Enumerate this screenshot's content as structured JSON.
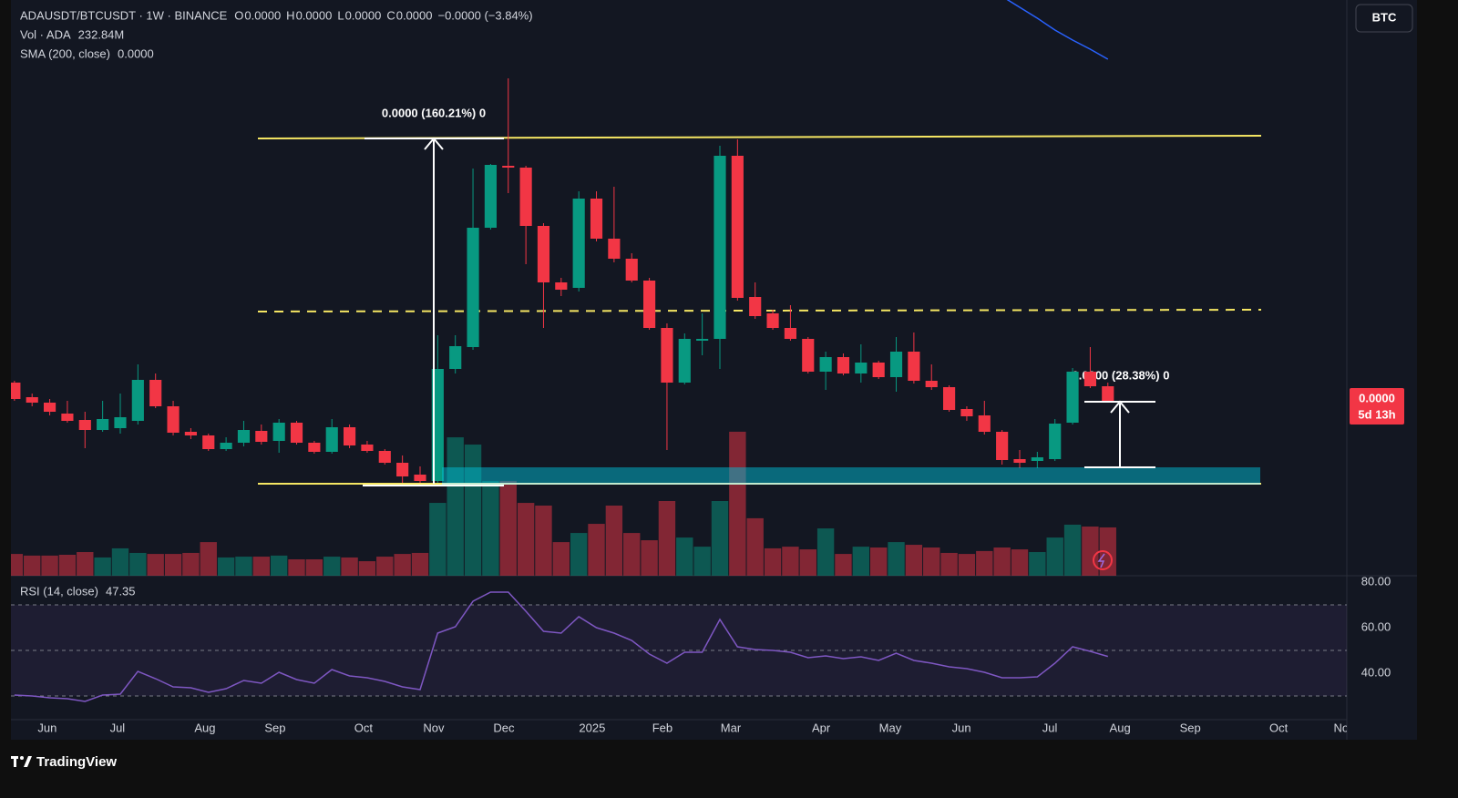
{
  "header": {
    "symbol": "ADAUSDT/BTCUSDT · 1W · BINANCE",
    "ohlc": [
      {
        "label": "O",
        "value": "0.0000"
      },
      {
        "label": "H",
        "value": "0.0000"
      },
      {
        "label": "L",
        "value": "0.0000"
      },
      {
        "label": "C",
        "value": "0.0000"
      }
    ],
    "change": "−0.0000 (−3.84%)",
    "currency_button": "BTC"
  },
  "footer": {
    "brand": "TradingView"
  },
  "chart_data": [
    {
      "type": "candlestick",
      "up_color": "#089981",
      "down_color": "#f23645",
      "open": [
        8.705e-06,
        8.305e-06,
        8.155e-06,
        7.855e-06,
        7.68e-06,
        7.405e-06,
        7.455e-06,
        7.655e-06,
        8.78e-06,
        8.055e-06,
        7.355e-06,
        7.255e-06,
        6.88e-06,
        7.055e-06,
        7.38e-06,
        7.105e-06,
        7.605e-06,
        7.055e-06,
        6.805e-06,
        7.48e-06,
        7.005e-06,
        6.83e-06,
        6.505e-06,
        6.18e-06,
        6.005e-06,
        9.08e-06,
        9.68e-06,
        1.2955e-05,
        1.4655e-05,
        1.4605e-05,
        1.3005e-05,
        1.1455e-05,
        1.1305e-05,
        1.3755e-05,
        1.2655e-05,
        1.2105e-05,
        1.1505e-05,
        1.0205e-05,
        8.705e-06,
        9.855e-06,
        9.905e-06,
        1.493e-05,
        1.1055e-05,
        1.0605e-05,
        1.0205e-05,
        9.905e-06,
        9.005e-06,
        9.405e-06,
        8.955e-06,
        9.255e-06,
        8.855e-06,
        9.555e-06,
        8.755e-06,
        8.58e-06,
        7.98e-06,
        7.805e-06,
        7.355e-06,
        6.605e-06,
        6.555e-06,
        6.605e-06,
        7.605e-06,
        9.005e-06,
        8.605e-06
      ],
      "high": [
        8.755e-06,
        8.405e-06,
        8.255e-06,
        8.205e-06,
        7.905e-06,
        8.205e-06,
        8.405e-06,
        9.205e-06,
        8.955e-06,
        8.205e-06,
        7.455e-06,
        7.305e-06,
        7.205e-06,
        7.655e-06,
        7.555e-06,
        7.705e-06,
        7.655e-06,
        7.105e-06,
        7.705e-06,
        7.555e-06,
        7.105e-06,
        6.88e-06,
        6.705e-06,
        6.405e-06,
        1.0005e-05,
        1.0005e-05,
        1.458e-05,
        1.4705e-05,
        1.7055e-05,
        1.4655e-05,
        1.308e-05,
        1.158e-05,
        1.3955e-05,
        1.3955e-05,
        1.408e-05,
        1.2255e-05,
        1.158e-05,
        1.033e-05,
        1.0055e-05,
        1.0605e-05,
        1.5205e-05,
        1.538e-05,
        1.1455e-05,
        1.0705e-05,
        1.083e-05,
        9.955e-06,
        9.555e-06,
        9.505e-06,
        9.755e-06,
        9.305e-06,
        9.955e-06,
        1.008e-05,
        9.205e-06,
        8.63e-06,
        8.055e-06,
        8.205e-06,
        7.405e-06,
        6.855e-06,
        6.805e-06,
        7.705e-06,
        9.105e-06,
        9.68e-06,
        8.705e-06
      ],
      "low": [
        8.205e-06,
        8.055e-06,
        7.805e-06,
        7.605e-06,
        6.905e-06,
        7.355e-06,
        7.305e-06,
        7.555e-06,
        8.005e-06,
        7.255e-06,
        7.155e-06,
        6.83e-06,
        6.83e-06,
        6.955e-06,
        7.005e-06,
        6.78e-06,
        7.005e-06,
        6.755e-06,
        6.755e-06,
        6.905e-06,
        6.78e-06,
        6.455e-06,
        5.955e-06,
        5.93e-06,
        5.955e-06,
        8.955e-06,
        9.605e-06,
        1.2905e-05,
        1.3905e-05,
        1.1955e-05,
        1.0205e-05,
        1.108e-05,
        1.1205e-05,
        1.258e-05,
        1.2005e-05,
        1.1455e-05,
        1.0155e-05,
        6.855e-06,
        8.655e-06,
        9.455e-06,
        9.08e-06,
        1.0955e-05,
        1.0455e-05,
        1.0155e-05,
        9.855e-06,
        8.955e-06,
        8.505e-06,
        8.905e-06,
        8.705e-06,
        8.805e-06,
        8.455e-06,
        8.68e-06,
        8.505e-06,
        7.905e-06,
        7.655e-06,
        7.28e-06,
        6.455e-06,
        6.355e-06,
        6.355e-06,
        6.555e-06,
        7.555e-06,
        8.555e-06,
        8.155e-06
      ],
      "close": [
        8.255e-06,
        8.155e-06,
        7.905e-06,
        7.655e-06,
        7.405e-06,
        7.705e-06,
        7.755e-06,
        8.78e-06,
        8.055e-06,
        7.33e-06,
        7.255e-06,
        6.88e-06,
        7.055e-06,
        7.405e-06,
        7.08e-06,
        7.605e-06,
        7.055e-06,
        6.805e-06,
        7.48e-06,
        6.98e-06,
        6.83e-06,
        6.505e-06,
        6.13e-06,
        6.005e-06,
        9.08e-06,
        9.705e-06,
        1.2955e-05,
        1.468e-05,
        1.4605e-05,
        1.3005e-05,
        1.1455e-05,
        1.1255e-05,
        1.3755e-05,
        1.2655e-05,
        1.2105e-05,
        1.1505e-05,
        1.0205e-05,
        8.705e-06,
        9.905e-06,
        9.905e-06,
        1.493e-05,
        1.103e-05,
        1.053e-05,
        1.0205e-05,
        9.905e-06,
        9.005e-06,
        9.405e-06,
        8.955e-06,
        9.255e-06,
        8.855e-06,
        9.555e-06,
        8.755e-06,
        8.58e-06,
        7.955e-06,
        7.78e-06,
        7.355e-06,
        6.58e-06,
        6.505e-06,
        6.655e-06,
        7.58e-06,
        9.005e-06,
        8.605e-06,
        8.205e-06
      ],
      "ylim": [
        3.405e-06,
        1.9205e-05
      ],
      "volume": {
        "name": "Vol · ADA",
        "value_label": "232.84M",
        "ylim": [
          0,
          2774500000.0
        ],
        "values": [
          105000000.0,
          97000000.0,
          97000000.0,
          101000000.0,
          114000000.0,
          88000000.0,
          132000000.0,
          110000000.0,
          105000000.0,
          105000000.0,
          110000000.0,
          162000000.0,
          88000000.0,
          92000000.0,
          92000000.0,
          97000000.0,
          79000000.0,
          79000000.0,
          92000000.0,
          88000000.0,
          70000000.0,
          92000000.0,
          105000000.0,
          110000000.0,
          351000000.0,
          667000000.0,
          632000000.0,
          457000000.0,
          457000000.0,
          351000000.0,
          338000000.0,
          162000000.0,
          206000000.0,
          250000000.0,
          338000000.0,
          206000000.0,
          171000000.0,
          360000000.0,
          184000000.0,
          140000000.0,
          360000000.0,
          694000000.0,
          277000000.0,
          132000000.0,
          140000000.0,
          127000000.0,
          228000000.0,
          105000000.0,
          140000000.0,
          136000000.0,
          162000000.0,
          149000000.0,
          136000000.0,
          110000000.0,
          105000000.0,
          119000000.0,
          136000000.0,
          127000000.0,
          114000000.0,
          184000000.0,
          246000000.0,
          237000000.0,
          232840000.0
        ]
      },
      "sma": {
        "name": "SMA (200, close)",
        "value_label": "0.0000",
        "color": "#2962ff",
        "values": [
          null,
          null,
          null,
          null,
          null,
          null,
          null,
          null,
          null,
          null,
          null,
          null,
          null,
          null,
          null,
          null,
          null,
          null,
          null,
          null,
          null,
          null,
          null,
          null,
          null,
          null,
          null,
          null,
          null,
          null,
          null,
          null,
          null,
          null,
          null,
          null,
          null,
          null,
          null,
          null,
          null,
          null,
          null,
          null,
          null,
          null,
          null,
          null,
          null,
          null,
          null,
          null,
          null,
          null,
          null,
          null,
          1.9305e-05,
          1.9005e-05,
          1.8705e-05,
          1.838e-05,
          1.8105e-05,
          1.7855e-05,
          1.758e-05
        ]
      },
      "xlim": [
        -0.2,
        75.55
      ],
      "xticks": [
        {
          "value": 1.86,
          "label": "Jun"
        },
        {
          "value": 5.84,
          "label": "Jul"
        },
        {
          "value": 10.8,
          "label": "Aug"
        },
        {
          "value": 14.78,
          "label": "Sep"
        },
        {
          "value": 19.79,
          "label": "Oct"
        },
        {
          "value": 23.77,
          "label": "Nov"
        },
        {
          "value": 27.75,
          "label": "Dec"
        },
        {
          "value": 32.76,
          "label": "2025"
        },
        {
          "value": 36.74,
          "label": "Feb"
        },
        {
          "value": 40.62,
          "label": "Mar"
        },
        {
          "value": 45.74,
          "label": "Apr"
        },
        {
          "value": 49.66,
          "label": "May"
        },
        {
          "value": 53.7,
          "label": "Jun"
        },
        {
          "value": 58.71,
          "label": "Jul"
        },
        {
          "value": 62.69,
          "label": "Aug"
        },
        {
          "value": 66.67,
          "label": "Sep"
        },
        {
          "value": 71.68,
          "label": "Oct"
        },
        {
          "value": 75.4,
          "label": "Nov"
        }
      ],
      "last_price_label": "0.0000",
      "countdown": "5d 13h",
      "annotations": [
        {
          "text": "0.0000 (160.21%) 0"
        },
        {
          "text": "0.0000 (28.38%) 0"
        }
      ]
    },
    {
      "type": "line",
      "name": "RSI (14, close)",
      "value_label": "47.35",
      "color": "#7e57c2",
      "values": [
        30.4,
        30,
        29.2,
        28.8,
        27.6,
        30.4,
        30.8,
        40.8,
        37.6,
        34,
        33.6,
        31.6,
        33.2,
        36.8,
        35.6,
        40.4,
        37.2,
        35.6,
        41.6,
        38.8,
        38,
        36.4,
        34,
        32.8,
        57.6,
        60.4,
        71.6,
        75.6,
        75.6,
        67.2,
        58.4,
        57.6,
        64.8,
        60,
        57.6,
        54.4,
        48.4,
        44.4,
        49.2,
        49.2,
        63.6,
        51.6,
        50.4,
        50,
        49.2,
        46.8,
        47.6,
        46.4,
        47.2,
        45.6,
        48.8,
        45.6,
        44.4,
        42.8,
        42,
        40.4,
        38,
        38,
        38.4,
        44.4,
        51.6,
        49.6,
        47.35
      ],
      "ylim": [
        19.6,
        82.8
      ],
      "yticks": [
        {
          "value": 80,
          "label": "80.00"
        },
        {
          "value": 60,
          "label": "60.00"
        },
        {
          "value": 40,
          "label": "40.00"
        }
      ],
      "bands": [
        70,
        50,
        30
      ]
    }
  ]
}
